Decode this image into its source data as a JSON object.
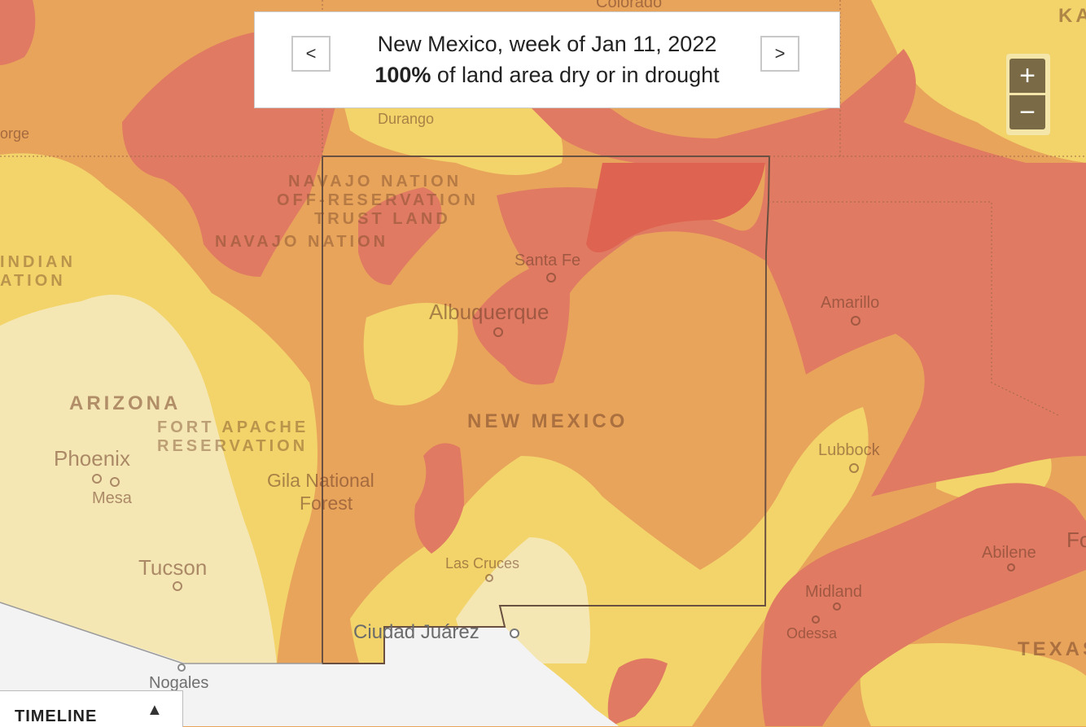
{
  "header": {
    "title": "New Mexico, week of Jan 11, 2022",
    "percent": "100%",
    "subtitle_rest": " of land area dry or in drought",
    "prev_label": "<",
    "next_label": ">"
  },
  "zoom": {
    "in_label": "+",
    "out_label": "−"
  },
  "timeline": {
    "label": "TIMELINE",
    "arrow": "▲"
  },
  "labels": {
    "colorado": "Colorado",
    "kansas_partial": "KA",
    "durango": "Durango",
    "george_partial": "orge",
    "navajo_offres_1": "NAVAJO NATION",
    "navajo_offres_2": "OFF-RESERVATION",
    "navajo_offres_3": "TRUST LAND",
    "navajo_nation": "NAVAJO NATION",
    "indian_1": "INDIAN",
    "indian_2": "ATION",
    "santa_fe": "Santa Fe",
    "albuquerque": "Albuquerque",
    "amarillo": "Amarillo",
    "arizona": "ARIZONA",
    "fort_apache_1": "FORT APACHE",
    "fort_apache_2": "RESERVATION",
    "new_mexico": "NEW MEXICO",
    "phoenix": "Phoenix",
    "mesa": "Mesa",
    "gila_1": "Gila National",
    "gila_2": "Forest",
    "lubbock": "Lubbock",
    "tucson": "Tucson",
    "las_cruces": "Las Cruces",
    "abilene": "Abilene",
    "fo_partial": "Fo",
    "midland": "Midland",
    "odessa": "Odessa",
    "ciudad_juarez": "Ciudad Juárez",
    "texas_partial": "TEXAS",
    "nogales": "Nogales"
  },
  "legend_colors": {
    "abnormally_dry": "#f2d46a",
    "moderate": "#e9a45c",
    "severe": "#e07a62",
    "extreme": "#de6350",
    "none": "#f5e7b3",
    "mexico": "#f3f3f3"
  }
}
